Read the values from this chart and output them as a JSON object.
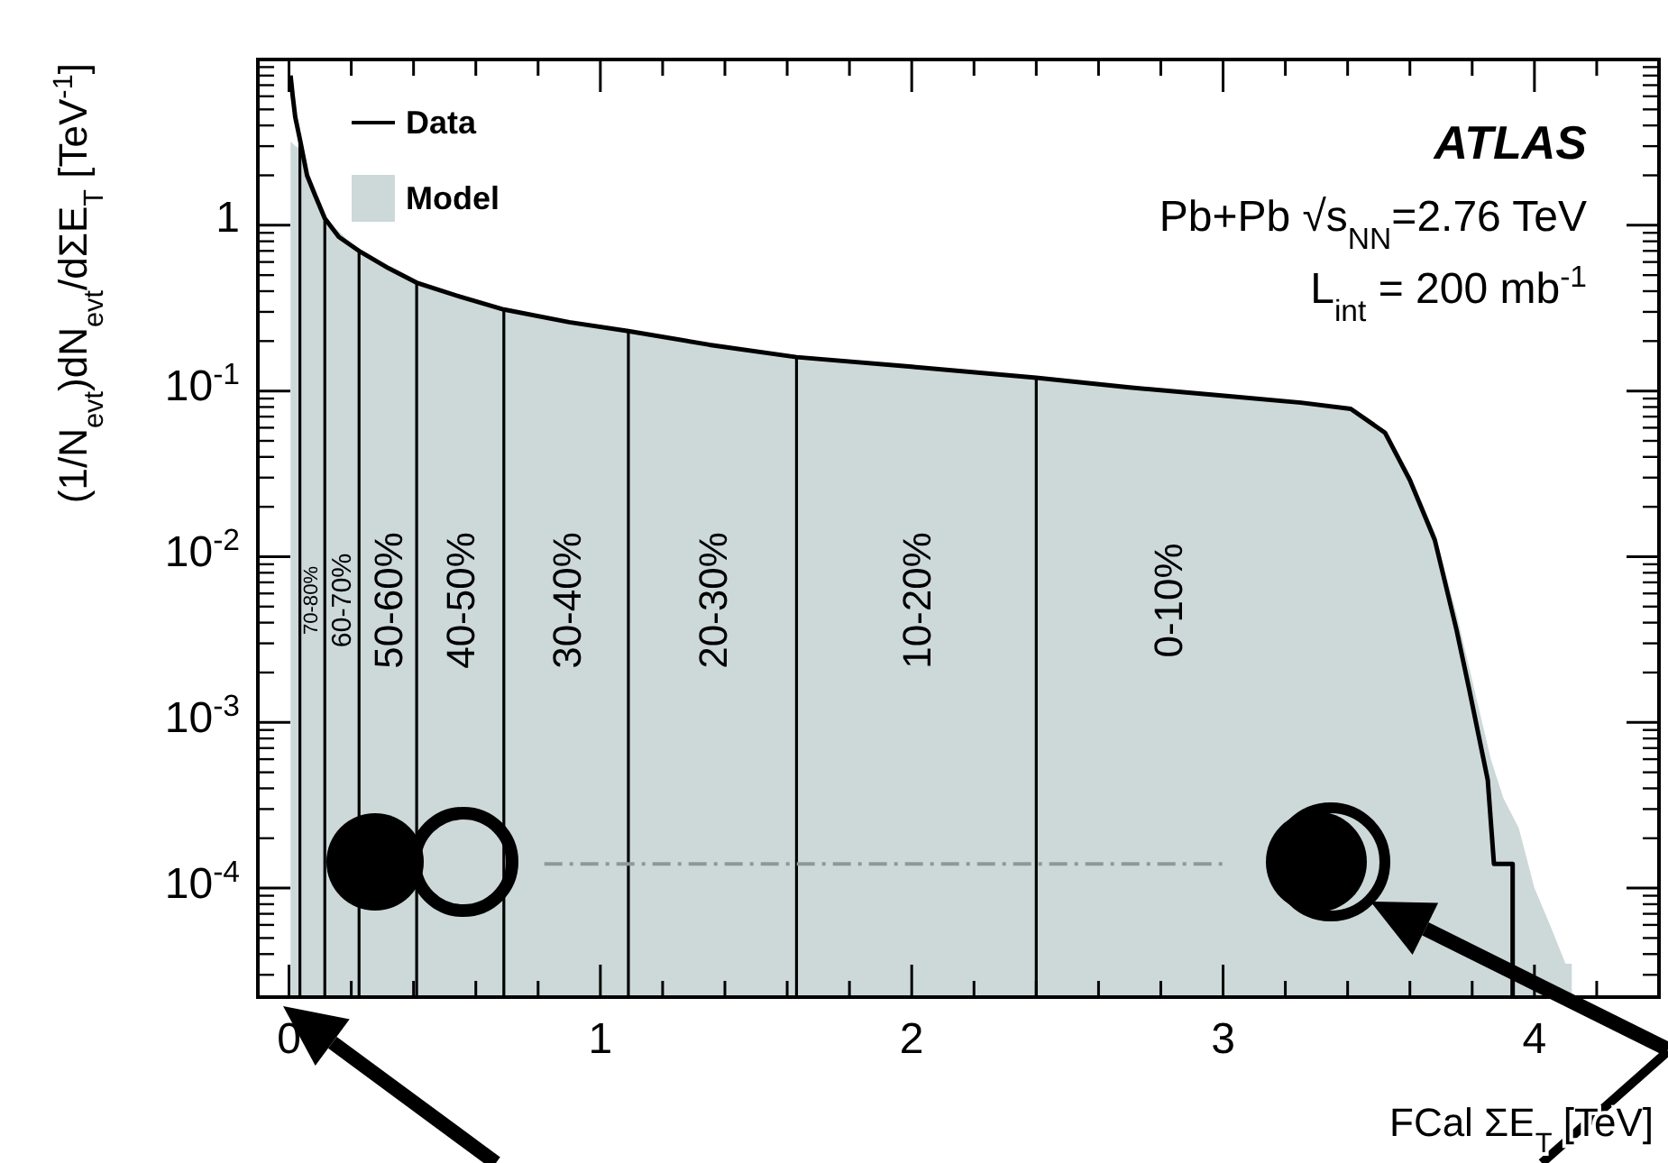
{
  "chart_data": {
    "type": "line",
    "xlabel": "FCal ΣE$_{T}$ [TeV]",
    "ylabel": "(1/N$_{evt}$)dN$_{evt}$/dΣE$_{T}$ [TeV$^{-1}$]",
    "log": "y",
    "xlim": [
      -0.1,
      4.4
    ],
    "ylim": [
      2.2e-05,
      10
    ],
    "xticks": [
      0,
      {
        "value": 0.2,
        "label": null
      },
      {
        "value": 0.4,
        "label": null
      },
      {
        "value": 0.6,
        "label": null
      },
      {
        "value": 0.8,
        "label": null
      },
      1,
      {
        "value": 1.2,
        "label": null
      },
      {
        "value": 1.4,
        "label": null
      },
      {
        "value": 1.6,
        "label": null
      },
      {
        "value": 1.8,
        "label": null
      },
      2,
      {
        "value": 2.2,
        "label": null
      },
      {
        "value": 2.4,
        "label": null
      },
      {
        "value": 2.6,
        "label": null
      },
      {
        "value": 2.8,
        "label": null
      },
      3,
      {
        "value": 3.2,
        "label": null
      },
      {
        "value": 3.4,
        "label": null
      },
      {
        "value": 3.6,
        "label": null
      },
      {
        "value": 3.8,
        "label": null
      },
      4,
      {
        "value": 4.2,
        "label": null
      }
    ],
    "yticks": [
      {
        "value": 0.0001,
        "label": "10$^{-4}$"
      },
      {
        "value": 0.001,
        "label": "10$^{-3}$"
      },
      {
        "value": 0.01,
        "label": "10$^{-2}$"
      },
      {
        "value": 0.1,
        "label": "10$^{-1}$"
      },
      1
    ],
    "legend": "top left",
    "series": [
      {
        "name": "Data",
        "color": "#000000",
        "x": [
          0.005,
          0.012,
          0.02,
          0.035,
          0.058,
          0.085,
          0.115,
          0.16,
          0.23,
          0.32,
          0.41,
          0.55,
          0.69,
          0.9,
          1.09,
          1.35,
          1.63,
          2.0,
          2.4,
          2.7,
          3.02,
          3.25,
          3.41,
          3.52,
          3.6,
          3.68,
          3.75,
          3.79,
          3.85,
          3.87,
          3.93,
          3.93
        ],
        "values": [
          8,
          6,
          4.5,
          3.3,
          2.0,
          1.5,
          1.1,
          0.85,
          0.69,
          0.55,
          0.45,
          0.37,
          0.31,
          0.26,
          0.23,
          0.19,
          0.16,
          0.14,
          0.12,
          0.105,
          0.093,
          0.085,
          0.078,
          0.056,
          0.029,
          0.0126,
          0.0036,
          0.0016,
          0.00045,
          0.00014,
          0.00014,
          2.2e-05
        ]
      },
      {
        "type": "line",
        "color": "#8a9a9a",
        "line_style": "dashed",
        "x": [
          0.82,
          3.0
        ],
        "values": [
          0.00014,
          0.00014
        ]
      },
      {
        "name": "Model",
        "type": "area",
        "color": "#cdd9d9",
        "x": [
          0.005,
          0.02,
          0.035,
          0.06,
          0.115,
          0.23,
          0.41,
          0.69,
          1.09,
          1.63,
          2.4,
          3.02,
          3.41,
          3.52,
          3.6,
          3.68,
          3.75,
          3.8,
          3.86,
          3.9,
          3.95,
          4.0,
          4.05,
          4.1,
          4.12,
          4.12
        ],
        "values": [
          3.2,
          3.0,
          2.9,
          2.0,
          1.1,
          0.69,
          0.45,
          0.31,
          0.23,
          0.16,
          0.12,
          0.093,
          0.078,
          0.058,
          0.031,
          0.014,
          0.0045,
          0.0018,
          0.0006,
          0.00035,
          0.00023,
          0.0001,
          6e-05,
          3.5e-05,
          3.5e-05,
          2.2e-05
        ]
      }
    ],
    "ref_lines": [
      {
        "axis": "x",
        "value": 0.035,
        "color": "#000000"
      },
      {
        "axis": "x",
        "value": 0.115,
        "color": "#000000"
      },
      {
        "axis": "x",
        "value": 0.225,
        "color": "#000000"
      },
      {
        "axis": "x",
        "value": 0.41,
        "color": "#000000"
      },
      {
        "axis": "x",
        "value": 0.69,
        "color": "#000000"
      },
      {
        "axis": "x",
        "value": 1.09,
        "color": "#000000"
      },
      {
        "axis": "x",
        "value": 1.63,
        "color": "#000000"
      },
      {
        "axis": "x",
        "value": 2.4,
        "color": "#000000"
      }
    ],
    "annotations": [
      "70-80%",
      "60-70%",
      "50-60%",
      "40-50%",
      "30-40%",
      "20-30%",
      "10-20%",
      "0-10%",
      "ATLAS",
      "Pb+Pb √s$_{NN}$=2.76 TeV",
      "L$_{int}$ = 200 mb$^{-1}$"
    ]
  }
}
